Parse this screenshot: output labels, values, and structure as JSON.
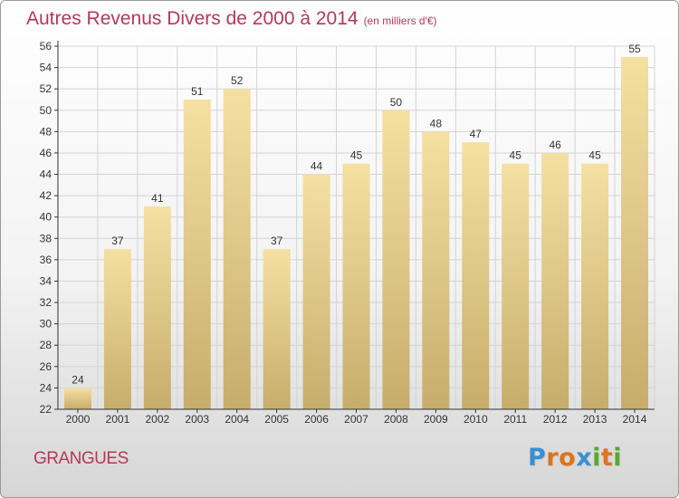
{
  "header": {
    "title": "Autres Revenus Divers de 2000 à 2014",
    "unit": "(en milliers d'€)"
  },
  "footer": {
    "town": "GRANGUES",
    "logo_text": "Proxiti",
    "logo_colors": [
      "#3a8fd1",
      "#e0731b",
      "#e0731b",
      "#3a8fd1",
      "#5aa832",
      "#e0731b",
      "#5aa832"
    ]
  },
  "colors": {
    "title": "#b8365c",
    "bar_light": "#f5e0a2",
    "bar_dark": "#c7ad6c",
    "grid": "#d4d4d4",
    "axis": "#333333"
  },
  "chart_data": {
    "type": "bar",
    "title": "Autres Revenus Divers de 2000 à 2014",
    "ylabel": "",
    "xlabel": "",
    "categories": [
      "2000",
      "2001",
      "2002",
      "2003",
      "2004",
      "2005",
      "2006",
      "2007",
      "2008",
      "2009",
      "2010",
      "2011",
      "2012",
      "2013",
      "2014"
    ],
    "values": [
      24,
      37,
      41,
      51,
      52,
      37,
      44,
      45,
      50,
      48,
      47,
      45,
      46,
      45,
      55
    ],
    "ylim": [
      22,
      56
    ],
    "ytick_step": 2,
    "grid": true,
    "data_labels": true
  }
}
